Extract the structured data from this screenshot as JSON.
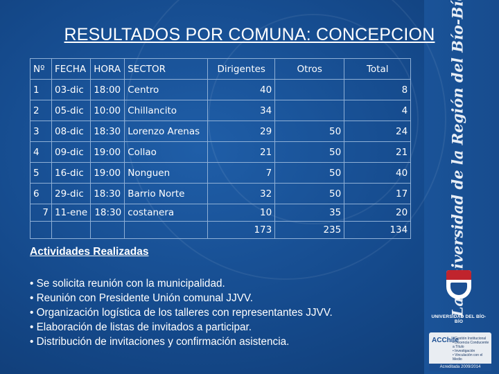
{
  "title": "RESULTADOS POR COMUNA: CONCEPCION",
  "vertical_slogan": "La Universidad de la Región del Bío-Bío",
  "table": {
    "headers": [
      "Nº",
      "FECHA",
      "HORA",
      "SECTOR",
      "Dirigentes",
      "Otros",
      "Total"
    ],
    "rows": [
      {
        "no": "1",
        "fecha": "03-dic",
        "hora": "18:00",
        "sector": "Centro",
        "dirigentes": "40",
        "otros": "",
        "total": "8"
      },
      {
        "no": "2",
        "fecha": "05-dic",
        "hora": "10:00",
        "sector": "Chillancito",
        "dirigentes": "34",
        "otros": "",
        "total": "4"
      },
      {
        "no": "3",
        "fecha": "08-dic",
        "hora": "18:30",
        "sector": "Lorenzo Arenas",
        "dirigentes": "29",
        "otros": "50",
        "total": "24"
      },
      {
        "no": "4",
        "fecha": "09-dic",
        "hora": "19:00",
        "sector": "Collao",
        "dirigentes": "21",
        "otros": "50",
        "total": "21"
      },
      {
        "no": "5",
        "fecha": "16-dic",
        "hora": "19:00",
        "sector": "Nonguen",
        "dirigentes": "7",
        "otros": "50",
        "total": "40"
      },
      {
        "no": "6",
        "fecha": "29-dic",
        "hora": "18:30",
        "sector": "Barrio Norte",
        "dirigentes": "32",
        "otros": "50",
        "total": "17"
      },
      {
        "no": "7",
        "fecha": "11-ene",
        "hora": "18:30",
        "sector": "costanera",
        "dirigentes": "10",
        "otros": "35",
        "total": "20"
      }
    ],
    "totals": {
      "dirigentes": "173",
      "otros": "235",
      "total": "134"
    }
  },
  "activities": {
    "heading": "Actividades Realizadas",
    "items": [
      "• Se solicita reunión  con la municipalidad.",
      "• Reunión con Presidente Unión comunal JJVV.",
      "• Organización logística de los talleres con representantes JJVV.",
      "• Elaboración de listas de  invitados  a participar.",
      "• Distribución de invitaciones  y confirmación asistencia."
    ]
  },
  "logo": {
    "university_name": "UNIVERSIDAD DEL BÍO-BÍO",
    "acreditacion_items": [
      "• Gestión Institucional",
      "• Docencia Conducente a Título",
      "• Investigación",
      "• Vinculación con el Medio"
    ],
    "acreditada": "Acreditada 2009/2014",
    "acl": "ACChile"
  },
  "colors": {
    "background": "#154a8c",
    "grid": "#8fb0d6",
    "text": "#ffffff"
  }
}
